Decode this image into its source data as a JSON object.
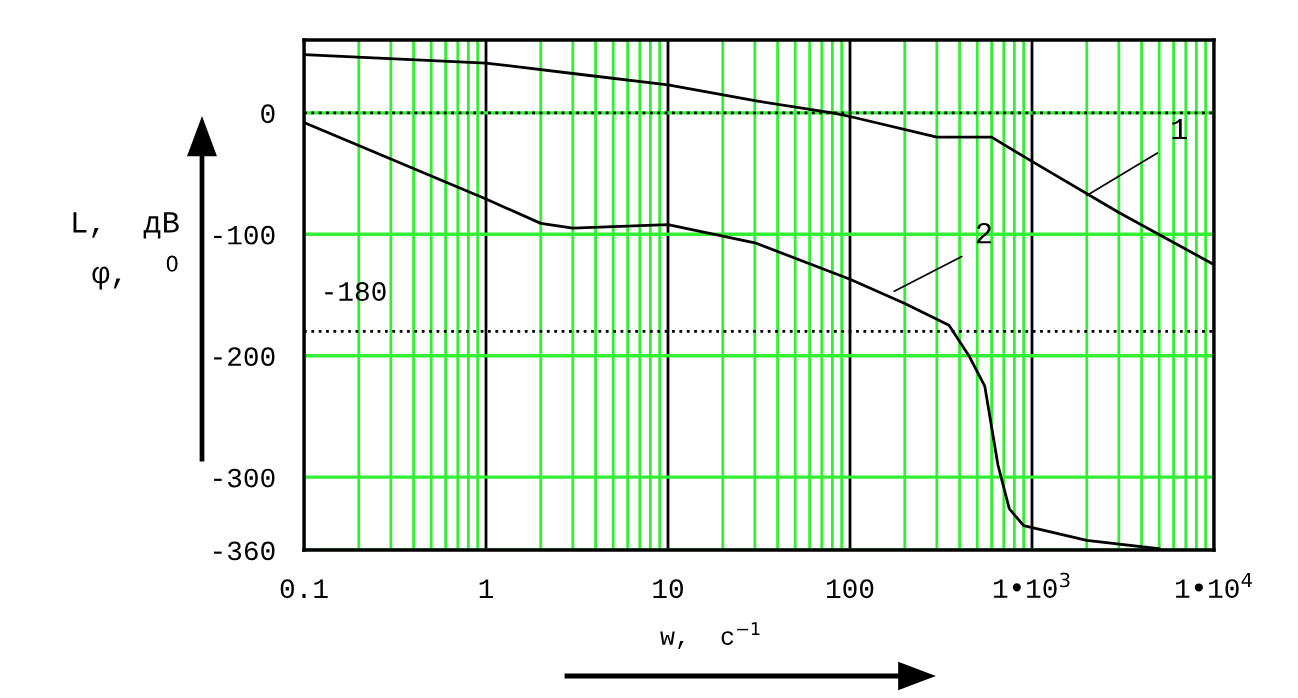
{
  "chart_data": {
    "type": "line",
    "xlabel": "w,  c$^{−1}$",
    "ylabel": "L,  дВ\nφ,  $^{0}$",
    "log": "x",
    "grid": true,
    "marker": "none",
    "line_style": "solid",
    "legend": false,
    "xlim": [
      0.1,
      10000
    ],
    "xticks": [
      0.1,
      {
        "value": 0.2,
        "label": null
      },
      {
        "value": 0.3,
        "label": null
      },
      {
        "value": 0.4,
        "label": null
      },
      {
        "value": 0.5,
        "label": null
      },
      {
        "value": 0.6,
        "label": null
      },
      {
        "value": 0.7,
        "label": null
      },
      {
        "value": 0.8,
        "label": null
      },
      {
        "value": 0.9,
        "label": null
      },
      1,
      {
        "value": 2,
        "label": null
      },
      {
        "value": 3,
        "label": null
      },
      {
        "value": 4,
        "label": null
      },
      {
        "value": 5,
        "label": null
      },
      {
        "value": 6,
        "label": null
      },
      {
        "value": 7,
        "label": null
      },
      {
        "value": 8,
        "label": null
      },
      {
        "value": 9,
        "label": null
      },
      10,
      {
        "value": 20,
        "label": null
      },
      {
        "value": 30,
        "label": null
      },
      {
        "value": 40,
        "label": null
      },
      {
        "value": 50,
        "label": null
      },
      {
        "value": 60,
        "label": null
      },
      {
        "value": 70,
        "label": null
      },
      {
        "value": 80,
        "label": null
      },
      {
        "value": 90,
        "label": null
      },
      100,
      {
        "value": 200,
        "label": null
      },
      {
        "value": 300,
        "label": null
      },
      {
        "value": 400,
        "label": null
      },
      {
        "value": 500,
        "label": null
      },
      {
        "value": 600,
        "label": null
      },
      {
        "value": 700,
        "label": null
      },
      {
        "value": 800,
        "label": null
      },
      {
        "value": 900,
        "label": null
      },
      {
        "value": 1000,
        "label": "1•10$^{3}$"
      },
      {
        "value": 2000,
        "label": null
      },
      {
        "value": 3000,
        "label": null
      },
      {
        "value": 4000,
        "label": null
      },
      {
        "value": 5000,
        "label": null
      },
      {
        "value": 6000,
        "label": null
      },
      {
        "value": 7000,
        "label": null
      },
      {
        "value": 8000,
        "label": null
      },
      {
        "value": 9000,
        "label": null
      },
      {
        "value": 10000,
        "label": "1•10$^{4}$"
      }
    ],
    "ylim": [
      -360,
      60
    ],
    "yticks": [
      0,
      -100,
      -200,
      -300,
      -360
    ],
    "series": [
      {
        "color": "#000000",
        "x": [
          0.1,
          1,
          3.16,
          10,
          30,
          80,
          100,
          300,
          600,
          1000,
          3000,
          10000
        ],
        "values": [
          48,
          41,
          32,
          23,
          10,
          0,
          -3,
          -20,
          -20,
          -40,
          -82,
          -125
        ]
      },
      {
        "color": "#000000",
        "x": [
          0.1,
          1,
          2,
          3,
          10,
          30,
          100,
          200,
          350,
          450,
          550,
          650,
          750,
          900,
          2000,
          5000
        ],
        "values": [
          -8,
          -71,
          -91,
          -95,
          -92,
          -107,
          -137,
          -157,
          -175,
          -200,
          -225,
          -290,
          -326,
          -340,
          -352,
          -359
        ]
      }
    ],
    "ref_lines": [
      {
        "axis": "y",
        "value": 0,
        "label": null,
        "color": "#000000",
        "line_style": "dotted"
      },
      {
        "axis": "y",
        "value": -180,
        "label": "-180",
        "color": "#000000",
        "line_style": "dotted"
      }
    ],
    "annotations": [
      {
        "text": "1",
        "x": 2000,
        "y": -68
      },
      {
        "text": "2",
        "x": 175,
        "y": -147
      }
    ]
  }
}
